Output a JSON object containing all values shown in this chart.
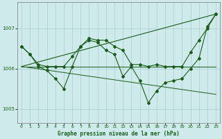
{
  "title": "Graphe pression niveau de la mer (hPa)",
  "background_color": "#ceeaea",
  "grid_color": "#aacccc",
  "line_color": "#1a5c1a",
  "xlim": [
    -0.5,
    23.5
  ],
  "ylim": [
    1004.65,
    1007.65
  ],
  "yticks": [
    1005,
    1006,
    1007
  ],
  "xticks": [
    0,
    1,
    2,
    3,
    4,
    5,
    6,
    7,
    8,
    9,
    10,
    11,
    12,
    13,
    14,
    15,
    16,
    17,
    18,
    19,
    20,
    21,
    22,
    23
  ],
  "series_flat": [
    1006.05,
    1006.05,
    1006.05,
    1006.05,
    1006.05,
    1006.05,
    1006.05,
    1006.05,
    1006.05,
    1006.05,
    1006.05,
    1006.05,
    1006.05,
    1006.05,
    1006.05,
    1006.05,
    1006.05,
    1006.05,
    1006.05,
    1006.05,
    1006.05,
    1006.05,
    1006.05,
    1006.05
  ],
  "series_decline": [
    1006.05,
    1006.02,
    1005.99,
    1005.96,
    1005.93,
    1005.9,
    1005.87,
    1005.84,
    1005.81,
    1005.78,
    1005.75,
    1005.72,
    1005.69,
    1005.66,
    1005.63,
    1005.6,
    1005.57,
    1005.54,
    1005.51,
    1005.48,
    1005.45,
    1005.42,
    1005.39,
    1005.36
  ],
  "series_smooth": [
    1006.55,
    1006.35,
    1006.1,
    1006.05,
    1006.05,
    1006.05,
    1006.3,
    1006.55,
    1006.75,
    1006.7,
    1006.7,
    1006.55,
    1006.45,
    1006.1,
    1006.1,
    1006.05,
    1006.1,
    1006.05,
    1006.05,
    1006.05,
    1006.4,
    1006.7,
    1007.0,
    1007.35
  ],
  "series_volatile": [
    1006.55,
    1006.35,
    1006.05,
    1005.95,
    1005.75,
    1005.5,
    1006.05,
    1006.55,
    1006.7,
    1006.65,
    1006.45,
    1006.35,
    1005.8,
    1006.05,
    1005.7,
    1005.15,
    1005.45,
    1005.65,
    1005.7,
    1005.75,
    1006.0,
    1006.25,
    1007.05,
    1007.35
  ],
  "trend_x": [
    0,
    23
  ],
  "trend_y": [
    1006.05,
    1007.35
  ]
}
